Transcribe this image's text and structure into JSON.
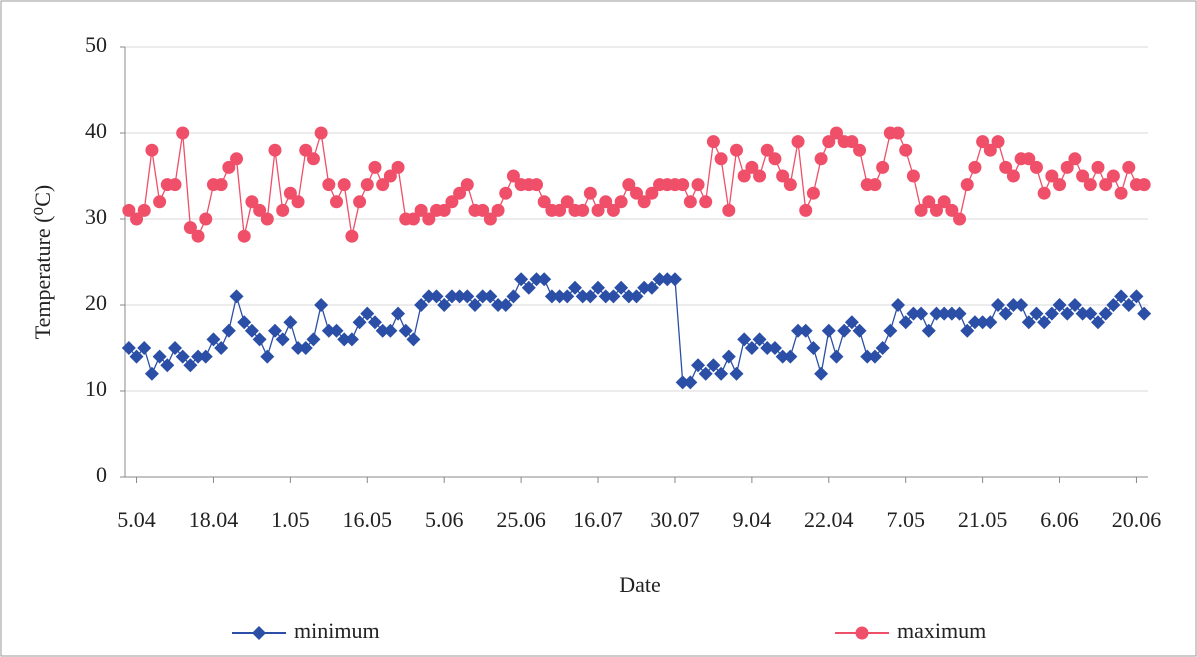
{
  "chart_data": {
    "type": "line",
    "x_label": "Date",
    "y_label": "Temperature (⁰C)",
    "categories": [
      null,
      "5.04",
      null,
      null,
      null,
      null,
      null,
      null,
      null,
      null,
      null,
      "18.04",
      null,
      null,
      null,
      null,
      null,
      null,
      null,
      null,
      null,
      "1.05",
      null,
      null,
      null,
      null,
      null,
      null,
      null,
      null,
      null,
      "16.05",
      null,
      null,
      null,
      null,
      null,
      null,
      null,
      null,
      null,
      "5.06",
      null,
      null,
      null,
      null,
      null,
      null,
      null,
      null,
      null,
      "25.06",
      null,
      null,
      null,
      null,
      null,
      null,
      null,
      null,
      null,
      "16.07",
      null,
      null,
      null,
      null,
      null,
      null,
      null,
      null,
      null,
      "30.07",
      null,
      null,
      null,
      null,
      null,
      null,
      null,
      null,
      null,
      "9.04",
      null,
      null,
      null,
      null,
      null,
      null,
      null,
      null,
      null,
      "22.04",
      null,
      null,
      null,
      null,
      null,
      null,
      null,
      null,
      null,
      "7.05",
      null,
      null,
      null,
      null,
      null,
      null,
      null,
      null,
      null,
      "21.05",
      null,
      null,
      null,
      null,
      null,
      null,
      null,
      null,
      null,
      "6.06",
      null,
      null,
      null,
      null,
      null,
      null,
      null,
      null,
      null,
      "20.06",
      null
    ],
    "series": [
      {
        "name": "minimum",
        "color": "#2b4fa6",
        "marker": "diamond",
        "values": [
          15,
          14,
          15,
          12,
          14,
          13,
          15,
          14,
          13,
          14,
          14,
          16,
          15,
          17,
          21,
          18,
          17,
          16,
          14,
          17,
          16,
          18,
          15,
          15,
          16,
          20,
          17,
          17,
          16,
          16,
          18,
          19,
          18,
          17,
          17,
          19,
          17,
          16,
          20,
          21,
          21,
          20,
          21,
          21,
          21,
          20,
          21,
          21,
          20,
          20,
          21,
          23,
          22,
          23,
          23,
          21,
          21,
          21,
          22,
          21,
          21,
          22,
          21,
          21,
          22,
          21,
          21,
          22,
          22,
          23,
          23,
          23,
          11,
          11,
          13,
          12,
          13,
          12,
          14,
          12,
          16,
          15,
          16,
          15,
          15,
          14,
          14,
          17,
          17,
          15,
          12,
          17,
          14,
          17,
          18,
          17,
          14,
          14,
          15,
          17,
          20,
          18,
          19,
          19,
          17,
          19,
          19,
          19,
          19,
          17,
          18,
          18,
          18,
          20,
          19,
          20,
          20,
          18,
          19,
          18,
          19,
          20,
          19,
          20,
          19,
          19,
          18,
          19,
          20,
          21,
          20,
          21,
          19
        ]
      },
      {
        "name": "maximum",
        "color": "#ef4f68",
        "marker": "circle",
        "values": [
          31,
          30,
          31,
          38,
          32,
          34,
          34,
          40,
          29,
          28,
          30,
          34,
          34,
          36,
          37,
          28,
          32,
          31,
          30,
          38,
          31,
          33,
          32,
          38,
          37,
          40,
          34,
          32,
          34,
          28,
          32,
          34,
          36,
          34,
          35,
          36,
          30,
          30,
          31,
          30,
          31,
          31,
          32,
          33,
          34,
          31,
          31,
          30,
          31,
          33,
          35,
          34,
          34,
          34,
          32,
          31,
          31,
          32,
          31,
          31,
          33,
          31,
          32,
          31,
          32,
          34,
          33,
          32,
          33,
          34,
          34,
          34,
          34,
          32,
          34,
          32,
          39,
          37,
          31,
          38,
          35,
          36,
          35,
          38,
          37,
          35,
          34,
          39,
          31,
          33,
          37,
          39,
          40,
          39,
          39,
          38,
          34,
          34,
          36,
          40,
          40,
          38,
          35,
          31,
          32,
          31,
          32,
          31,
          30,
          34,
          36,
          39,
          38,
          39,
          36,
          35,
          37,
          37,
          36,
          33,
          35,
          34,
          36,
          37,
          35,
          34,
          36,
          34,
          35,
          33,
          36,
          34,
          34
        ]
      }
    ],
    "ylim": [
      0,
      50
    ],
    "yticks": [
      0,
      10,
      20,
      30,
      40,
      50
    ],
    "grid": true,
    "legend": "bottom"
  }
}
